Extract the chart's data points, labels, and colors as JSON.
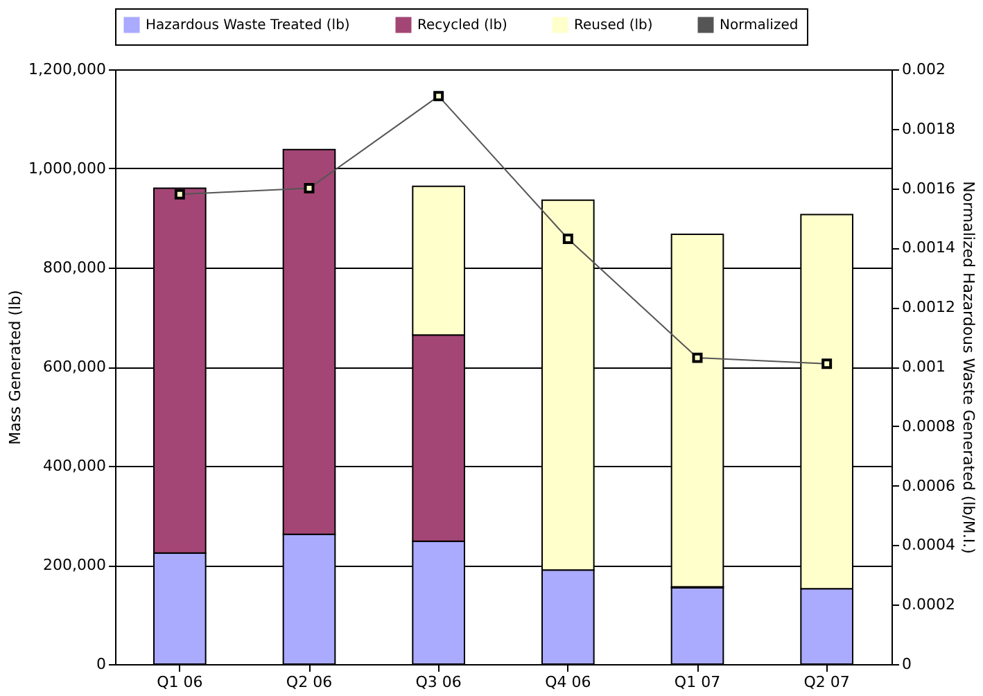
{
  "chart_data": {
    "type": "bar",
    "stacked": true,
    "xlabel": null,
    "ylabel": "Mass Generated (lb)",
    "y2label": "Normalized Hazardous Waste Generated (lb/M.I.)",
    "categories": [
      "Q1 06",
      "Q2 06",
      "Q3 06",
      "Q4 06",
      "Q1 07",
      "Q2 07"
    ],
    "series": [
      {
        "name": "Hazardous Waste Treated (lb)",
        "color": "#aaaaff",
        "values": [
          224000,
          262000,
          248000,
          190000,
          154000,
          152000
        ]
      },
      {
        "name": "Recycled (lb)",
        "color": "#a44675",
        "values": [
          736000,
          776000,
          416000,
          0,
          2000,
          0
        ]
      },
      {
        "name": "Reused (lb)",
        "color": "#ffffcc",
        "values": [
          0,
          0,
          300000,
          746000,
          711000,
          755000
        ]
      },
      {
        "name": "Normalized",
        "type": "line",
        "axis": "y2",
        "color": "#555555",
        "marker": "square",
        "values": [
          0.00158,
          0.0016,
          0.00191,
          0.00143,
          0.00103,
          0.00101
        ]
      }
    ],
    "ylim": [
      0,
      1200000
    ],
    "yticks": [
      0,
      {
        "value": 200000,
        "label": "200,000"
      },
      {
        "value": 400000,
        "label": "400,000"
      },
      {
        "value": 600000,
        "label": "600,000"
      },
      {
        "value": 800000,
        "label": "800,000"
      },
      {
        "value": 1000000,
        "label": "1,000,000"
      },
      {
        "value": 1200000,
        "label": "1,200,000"
      }
    ],
    "y2lim": [
      0,
      0.002
    ],
    "y2ticks": [
      0,
      0.0002,
      0.0004,
      0.0006,
      0.0008,
      0.001,
      0.0012,
      0.0014,
      0.0016,
      0.0018,
      0.002
    ],
    "grid": "y",
    "legend": "top"
  }
}
